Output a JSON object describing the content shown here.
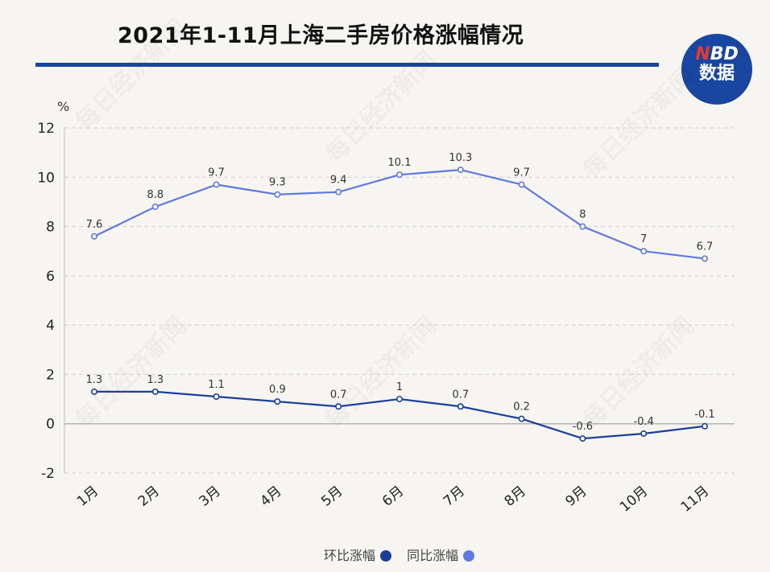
{
  "header": {
    "title": "2021年1-11月上海二手房价格涨幅情况",
    "logo_line1_accent": "N",
    "logo_line1_rest": "BD",
    "logo_line2": "数据",
    "watermark": "每日经济新闻"
  },
  "chart_data": {
    "type": "line",
    "title": "2021年1-11月上海二手房价格涨幅情况",
    "ylabel": "%",
    "xlabel": "",
    "categories": [
      "1月",
      "2月",
      "3月",
      "4月",
      "5月",
      "6月",
      "7月",
      "8月",
      "9月",
      "10月",
      "11月"
    ],
    "ylim": [
      -2,
      12
    ],
    "yticks": [
      -2,
      0,
      2,
      4,
      6,
      8,
      10,
      12
    ],
    "grid": true,
    "legend_position": "bottom-center",
    "series": [
      {
        "name": "环比涨幅",
        "color": "#1c3f9c",
        "values": [
          1.3,
          1.3,
          1.1,
          0.9,
          0.7,
          1,
          0.7,
          0.2,
          -0.6,
          -0.4,
          -0.1
        ]
      },
      {
        "name": "同比涨幅",
        "color": "#6079e0",
        "values": [
          7.6,
          8.8,
          9.7,
          9.3,
          9.4,
          10.1,
          10.3,
          9.7,
          8,
          7,
          6.7
        ]
      }
    ]
  }
}
